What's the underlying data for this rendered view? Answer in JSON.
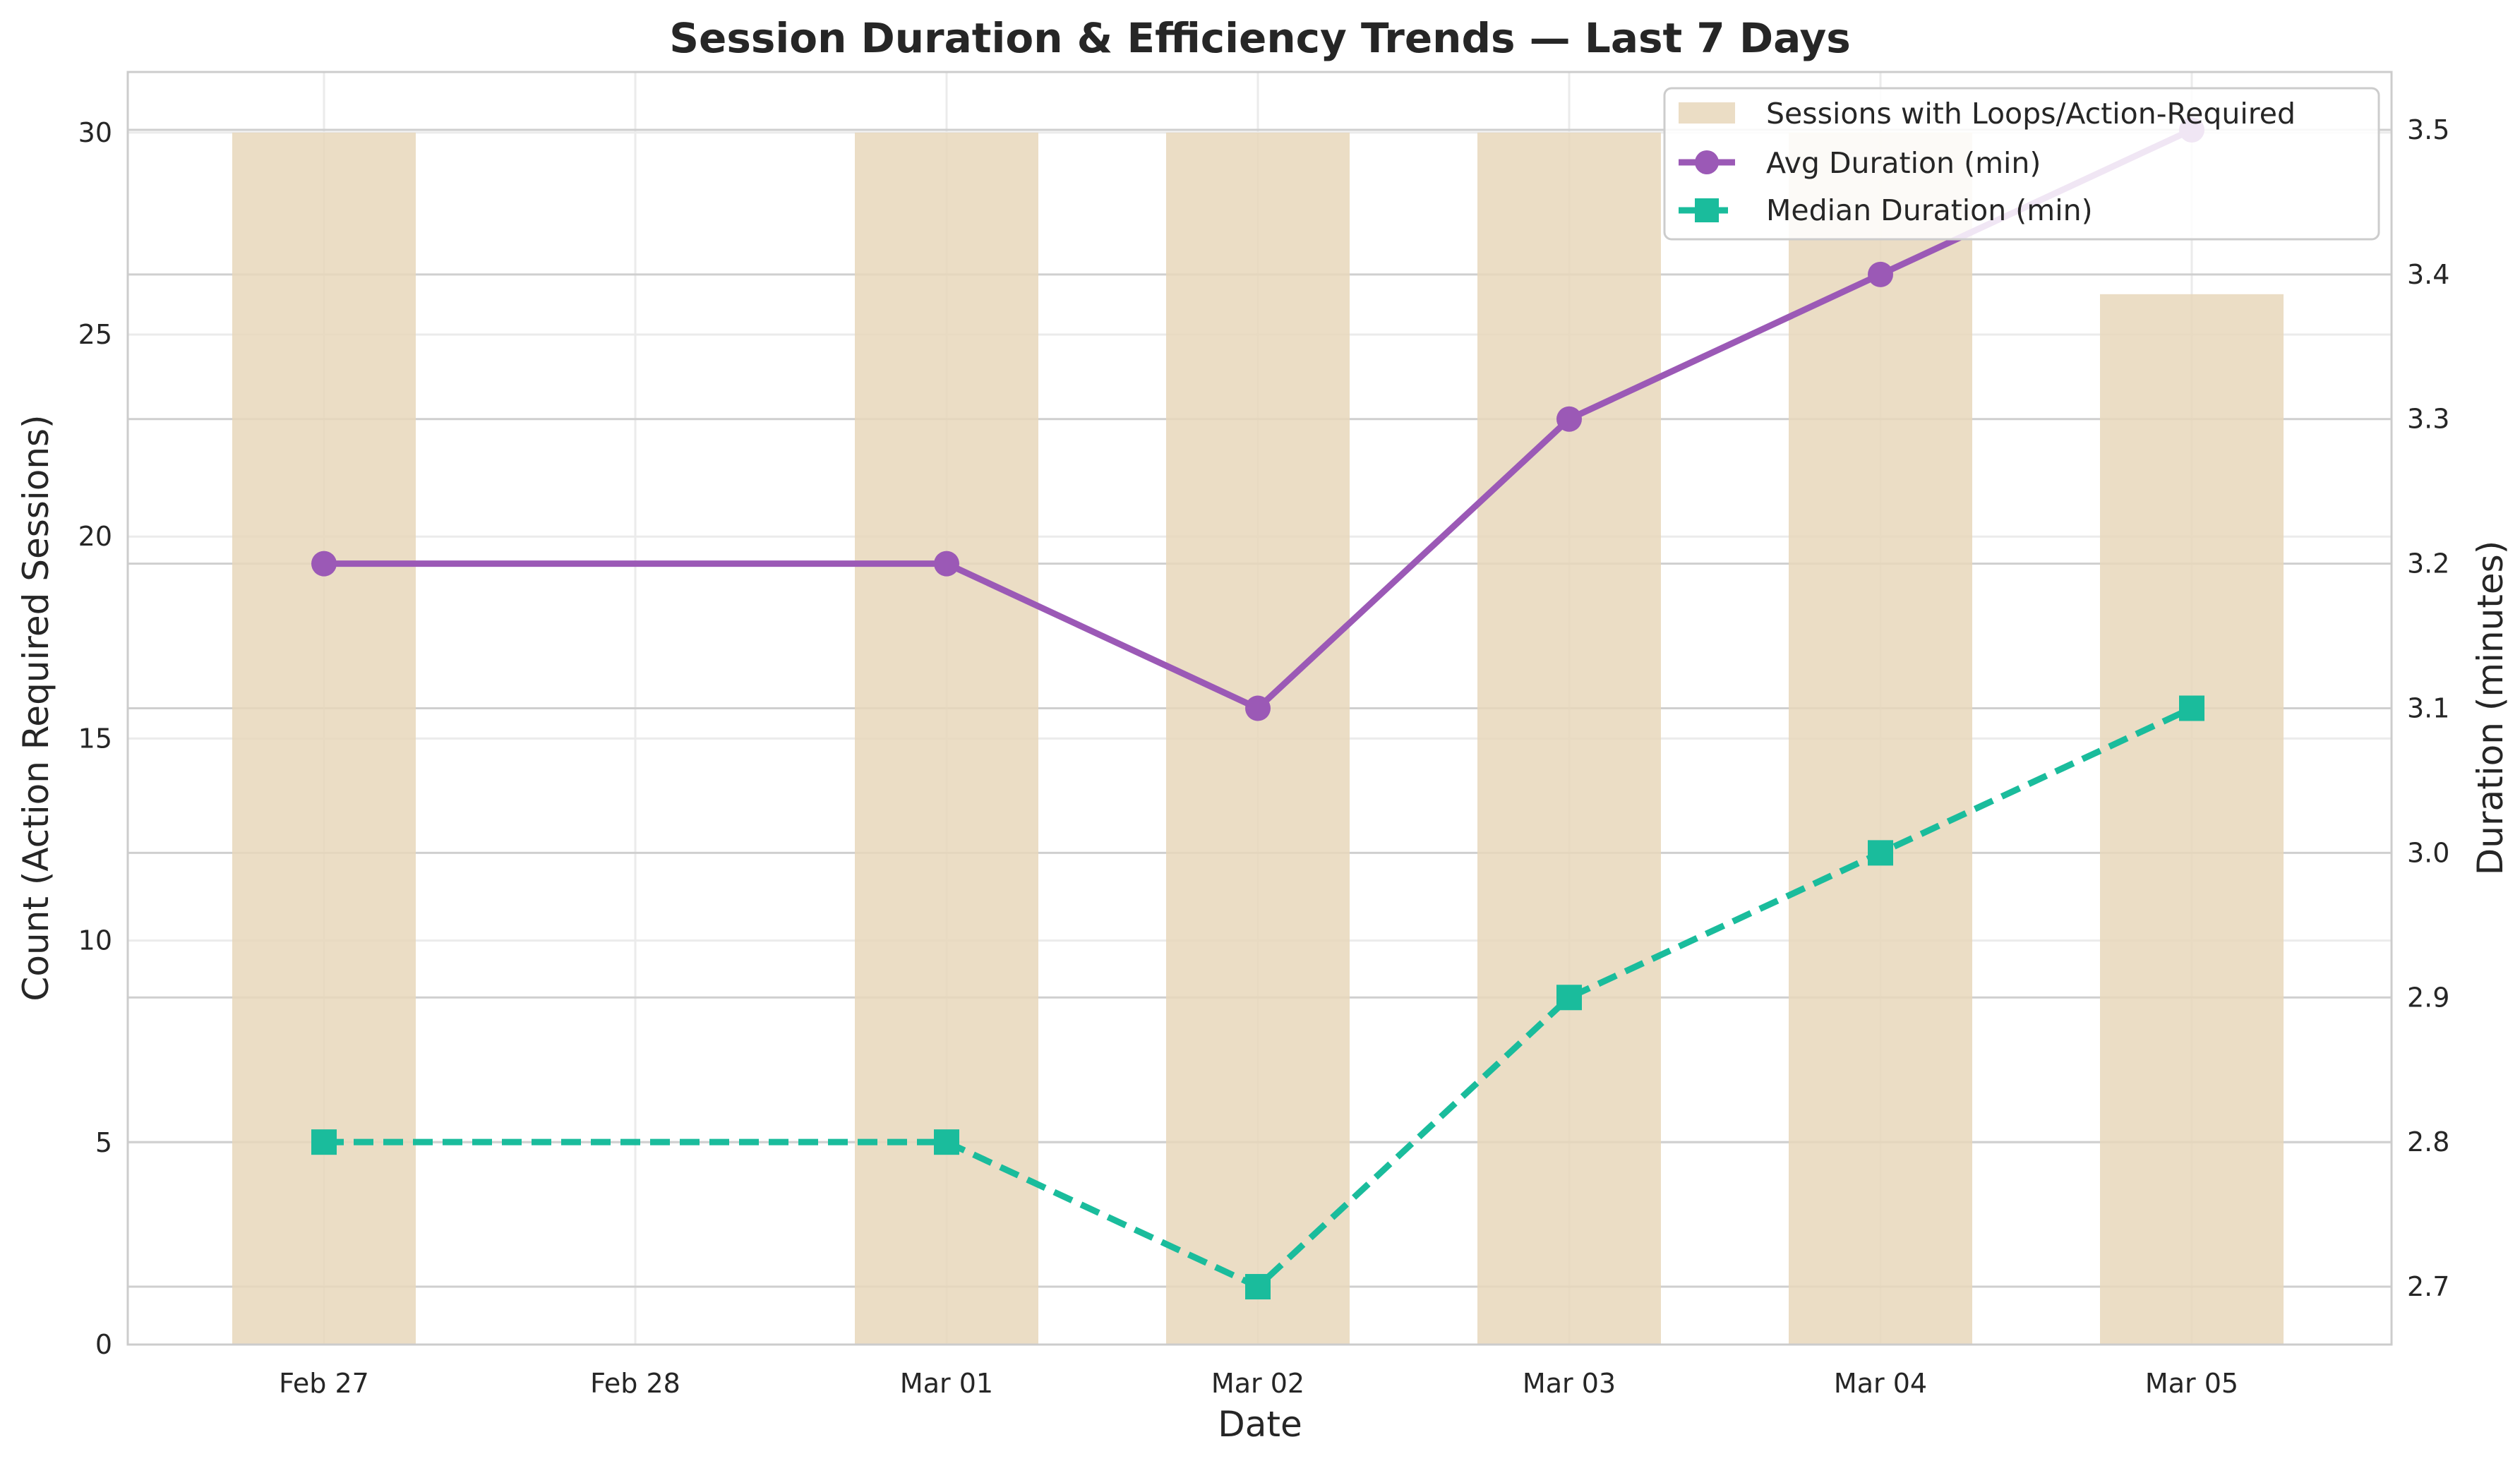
{
  "chart_data": {
    "type": "bar",
    "title": "Session Duration & Efficiency Trends — Last 7 Days",
    "xlabel": "Date",
    "ylabel_left": "Count (Action Required Sessions)",
    "ylabel_right": "Duration (minutes)",
    "categories": [
      "Feb 27",
      "Feb 28",
      "Mar 01",
      "Mar 02",
      "Mar 03",
      "Mar 04",
      "Mar 05"
    ],
    "ylim_left": [
      0,
      31.5
    ],
    "yticks_left": [
      "0",
      "5",
      "10",
      "15",
      "20",
      "25",
      "30"
    ],
    "ylim_right": [
      2.66,
      3.54
    ],
    "yticks_right": [
      "2.7",
      "2.8",
      "2.9",
      "3.0",
      "3.1",
      "3.2",
      "3.3",
      "3.4",
      "3.5"
    ],
    "grid": true,
    "legend_position": "top-right",
    "series": [
      {
        "name": "Sessions with Loops/Action-Required",
        "kind": "bar",
        "axis": "left",
        "color": "#e8d7bb",
        "values": [
          30,
          0,
          30,
          30,
          30,
          30,
          26
        ]
      },
      {
        "name": "Avg Duration (min)",
        "kind": "line",
        "axis": "right",
        "color": "#9b59b6",
        "marker": "circle",
        "values": [
          3.2,
          null,
          3.2,
          3.1,
          3.3,
          3.4,
          3.5
        ]
      },
      {
        "name": "Median Duration (min)",
        "kind": "line",
        "axis": "right",
        "color": "#1abc9c",
        "marker": "square",
        "dashed": true,
        "values": [
          2.8,
          null,
          2.8,
          2.7,
          2.9,
          3.0,
          3.1
        ]
      }
    ]
  }
}
